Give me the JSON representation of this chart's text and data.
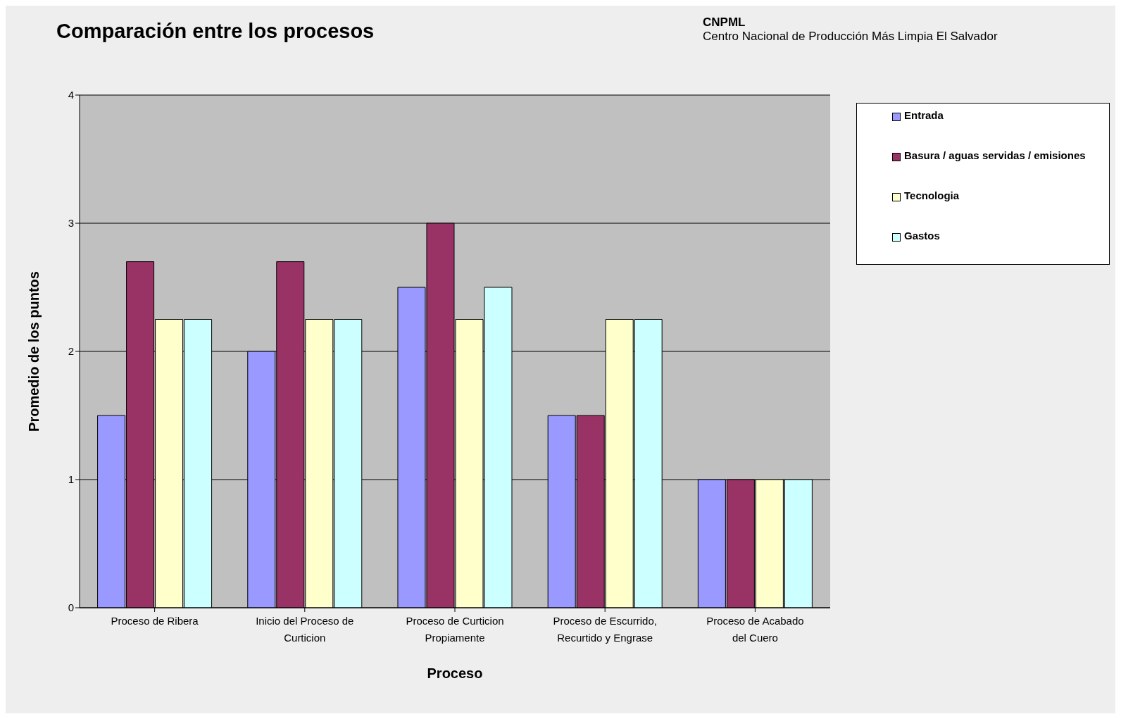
{
  "chart_data": {
    "type": "bar",
    "title": "Comparación entre los procesos",
    "xlabel": "Proceso",
    "ylabel": "Promedio de los puntos",
    "annotations": [
      "CNPML",
      "Centro Nacional de Producción Más Limpia El Salvador"
    ],
    "categories": [
      "Proceso de Ribera",
      "Inicio del Proceso de Curticion",
      "Proceso de Curticion Propiamente",
      "Proceso de Escurrido, Recurtido y Engrase",
      "Proceso de Acabado del Cuero"
    ],
    "series": [
      {
        "name": "Entrada",
        "color": "#9999ff",
        "values": [
          1.5,
          2,
          2.5,
          1.5,
          1
        ]
      },
      {
        "name": "Basura / aguas servidas / emisiones",
        "color": "#993366",
        "values": [
          2.7,
          2.7,
          3,
          1.5,
          1
        ]
      },
      {
        "name": "Tecnologia",
        "color": "#ffffcc",
        "values": [
          2.25,
          2.25,
          2.25,
          2.25,
          1
        ]
      },
      {
        "name": "Gastos",
        "color": "#ccffff",
        "values": [
          2.25,
          2.25,
          2.5,
          2.25,
          1
        ]
      }
    ],
    "ylim": [
      0,
      4
    ],
    "yticks": [
      0,
      1,
      2,
      3,
      4
    ],
    "grid": "y",
    "legend": "top right"
  }
}
